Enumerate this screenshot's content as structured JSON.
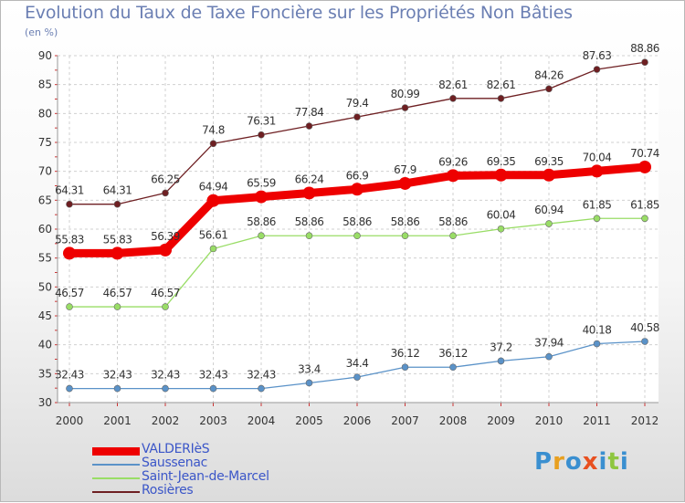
{
  "header": {
    "title": "Evolution du Taux de Taxe Foncière sur les Propriétés Non Bâties",
    "unit": "(en %)"
  },
  "logo": {
    "text": "Proxiti",
    "colors": [
      "#3a8fd0",
      "#e8a020",
      "#3a8fd0",
      "#e85020",
      "#3a8fd0",
      "#8ec63f",
      "#3a8fd0"
    ]
  },
  "chart_data": {
    "type": "line",
    "title": "Evolution du Taux de Taxe Foncière sur les Propriétés Non Bâties",
    "ylabel": "(en %)",
    "xlabel": "",
    "ylim": [
      30,
      90
    ],
    "yticks": [
      30,
      35,
      40,
      45,
      50,
      55,
      60,
      65,
      70,
      75,
      80,
      85,
      90
    ],
    "grid": true,
    "legend": "bottom-left",
    "x": [
      "2000",
      "2001",
      "2002",
      "2003",
      "2004",
      "2005",
      "2006",
      "2007",
      "2008",
      "2009",
      "2010",
      "2011",
      "2012"
    ],
    "series": [
      {
        "name": "VALDERIèS",
        "color": "#ee0000",
        "values": [
          55.83,
          55.83,
          56.39,
          64.94,
          65.59,
          66.24,
          66.9,
          67.9,
          69.26,
          69.35,
          69.35,
          70.04,
          70.74
        ]
      },
      {
        "name": "Saussenac",
        "color": "#5a92c8",
        "values": [
          32.43,
          32.43,
          32.43,
          32.43,
          32.43,
          33.4,
          34.4,
          36.12,
          36.12,
          37.2,
          37.94,
          40.18,
          40.58
        ]
      },
      {
        "name": "Saint-Jean-de-Marcel",
        "color": "#99dd66",
        "values": [
          46.57,
          46.57,
          46.57,
          56.61,
          58.86,
          58.86,
          58.86,
          58.86,
          58.86,
          60.04,
          60.94,
          61.85,
          61.85
        ]
      },
      {
        "name": "Rosières",
        "color": "#6e1f22",
        "values": [
          64.31,
          64.31,
          66.25,
          74.8,
          76.31,
          77.84,
          79.4,
          80.99,
          82.61,
          82.61,
          84.26,
          87.63,
          88.86
        ]
      }
    ]
  }
}
